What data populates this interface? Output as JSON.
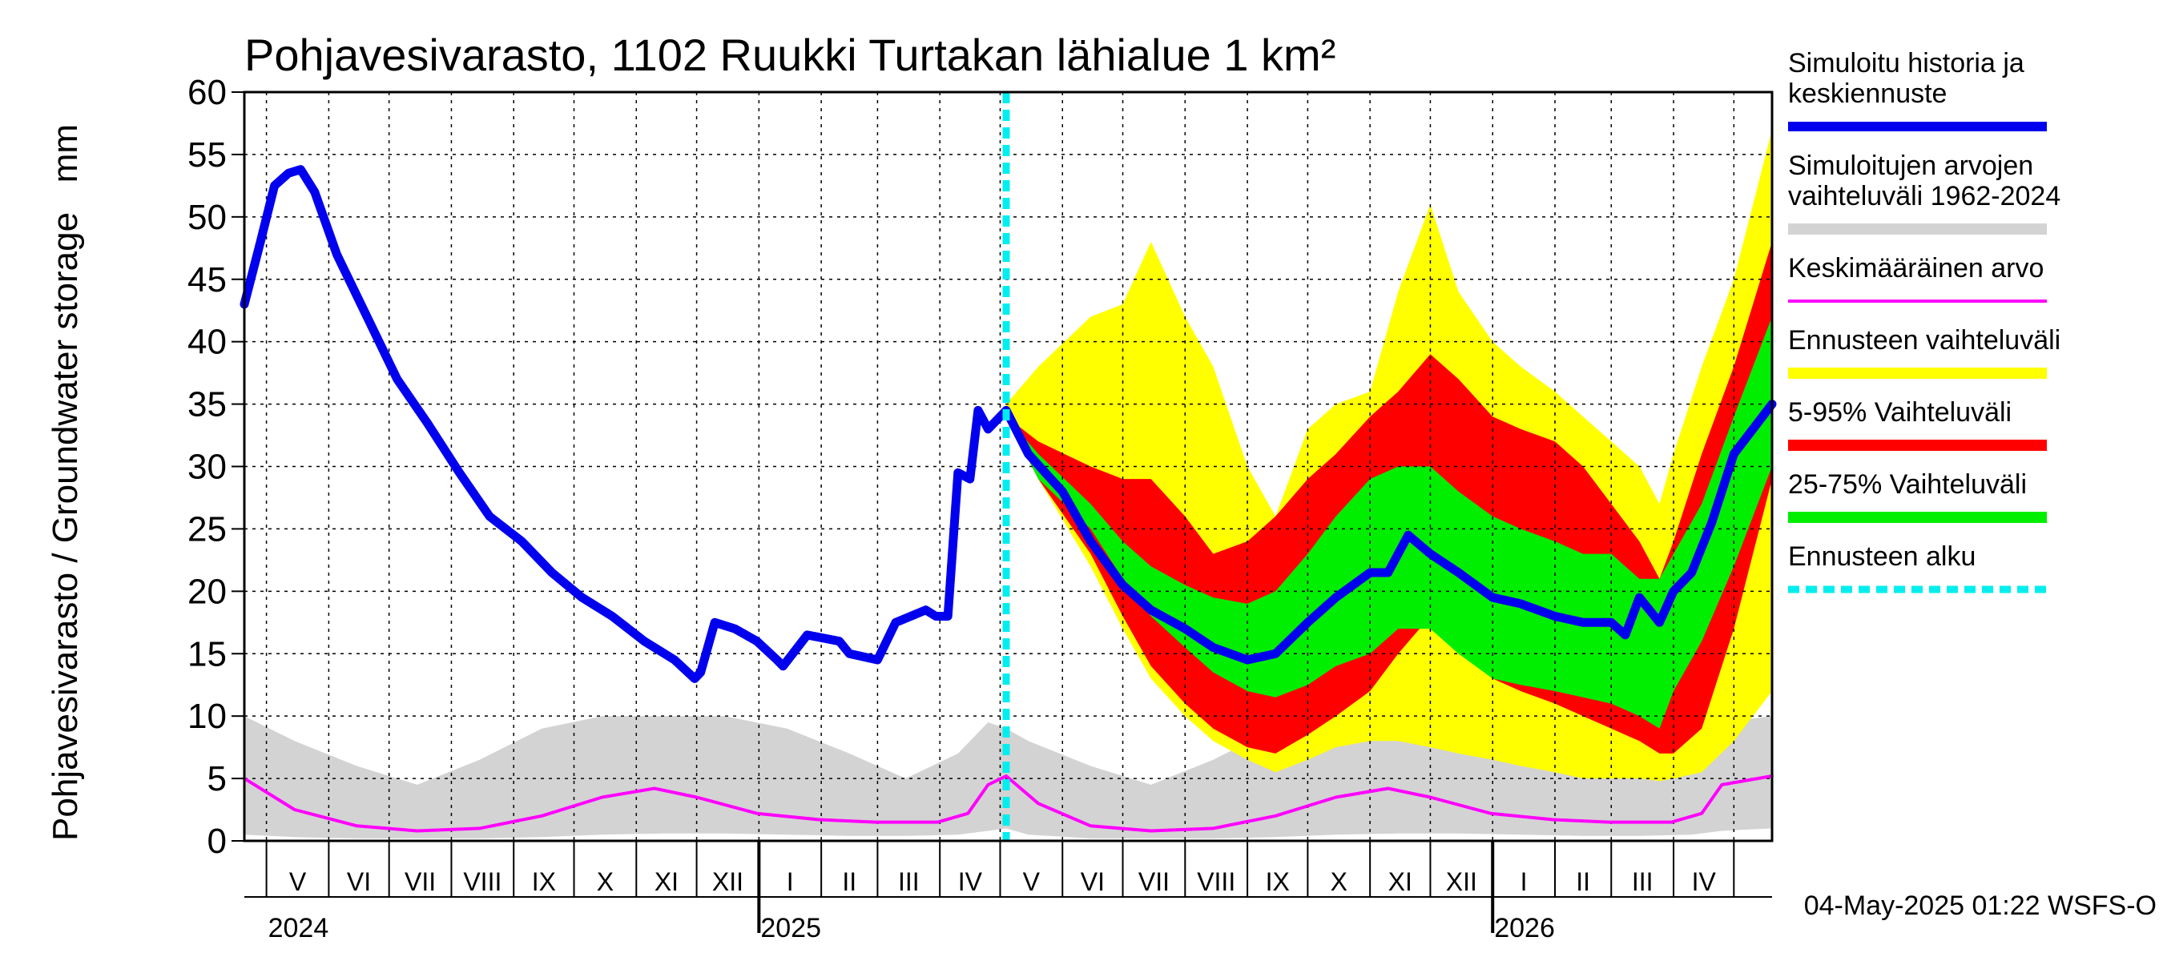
{
  "chart_data": {
    "type": "area",
    "title": "Pohjavesivarasto, 1102 Ruukki Turtakan lähialue 1 km²",
    "ylabel": "Pohjavesivarasto / Groundwater storage   mm",
    "ylim": [
      0,
      60
    ],
    "yticks": [
      "0",
      "5",
      "10",
      "15",
      "20",
      "25",
      "30",
      "35",
      "40",
      "45",
      "50",
      "55",
      "60"
    ],
    "x_range": [
      "2024-04-20",
      "2026-05-20"
    ],
    "grid": true,
    "months": [
      {
        "label": "V",
        "start": "2024-05-01"
      },
      {
        "label": "VI",
        "start": "2024-06-01"
      },
      {
        "label": "VII",
        "start": "2024-07-01"
      },
      {
        "label": "VIII",
        "start": "2024-08-01"
      },
      {
        "label": "IX",
        "start": "2024-09-01"
      },
      {
        "label": "X",
        "start": "2024-10-01"
      },
      {
        "label": "XI",
        "start": "2024-11-01"
      },
      {
        "label": "XII",
        "start": "2024-12-01"
      },
      {
        "label": "I",
        "start": "2025-01-01"
      },
      {
        "label": "II",
        "start": "2025-02-01"
      },
      {
        "label": "III",
        "start": "2025-03-01"
      },
      {
        "label": "IV",
        "start": "2025-04-01"
      },
      {
        "label": "V",
        "start": "2025-05-01"
      },
      {
        "label": "VI",
        "start": "2025-06-01"
      },
      {
        "label": "VII",
        "start": "2025-07-01"
      },
      {
        "label": "VIII",
        "start": "2025-08-01"
      },
      {
        "label": "IX",
        "start": "2025-09-01"
      },
      {
        "label": "X",
        "start": "2025-10-01"
      },
      {
        "label": "XI",
        "start": "2025-11-01"
      },
      {
        "label": "XII",
        "start": "2025-12-01"
      },
      {
        "label": "I",
        "start": "2026-01-01"
      },
      {
        "label": "II",
        "start": "2026-02-01"
      },
      {
        "label": "III",
        "start": "2026-03-01"
      },
      {
        "label": "IV",
        "start": "2026-04-01"
      },
      {
        "label": "",
        "start": "2026-05-01"
      }
    ],
    "years": [
      {
        "label": "2024",
        "date": "2024-05-01"
      },
      {
        "label": "2025",
        "date": "2025-01-01"
      },
      {
        "label": "2026",
        "date": "2026-01-01"
      }
    ],
    "forecast_start": "2025-05-04",
    "legend_placement": "right",
    "legend": [
      {
        "label": "Simuloitu historia ja keskiennuste",
        "lines": [
          "Simuloitu historia ja",
          "keskiennuste"
        ],
        "color": "#0000ee",
        "style": "line"
      },
      {
        "label": "Simuloitujen arvojen vaihteluväli 1962-2024",
        "lines": [
          "Simuloitujen arvojen",
          "vaihteluväli 1962-2024"
        ],
        "color": "#d3d3d3",
        "style": "band"
      },
      {
        "label": "Keskimääräinen arvo",
        "lines": [
          "Keskimääräinen arvo"
        ],
        "color": "#ff00ff",
        "style": "thin"
      },
      {
        "label": "Ennusteen vaihteluväli",
        "lines": [
          "Ennusteen vaihteluväli"
        ],
        "color": "#ffff00",
        "style": "band"
      },
      {
        "label": "5-95% Vaihteluväli",
        "lines": [
          "5-95% Vaihteluväli"
        ],
        "color": "#ff0000",
        "style": "band"
      },
      {
        "label": "25-75% Vaihteluväli",
        "lines": [
          "25-75% Vaihteluväli"
        ],
        "color": "#00ee00",
        "style": "band"
      },
      {
        "label": "Ennusteen alku",
        "lines": [
          "Ennusteen alku"
        ],
        "color": "#00eeee",
        "style": "dashed"
      }
    ],
    "series": [
      {
        "name": "Simuloitu historia ja keskiennuste",
        "color": "#0000ee",
        "x": [
          "2024-04-20",
          "2024-04-28",
          "2024-05-05",
          "2024-05-12",
          "2024-05-18",
          "2024-05-25",
          "2024-06-05",
          "2024-06-20",
          "2024-07-05",
          "2024-07-20",
          "2024-08-05",
          "2024-08-20",
          "2024-09-05",
          "2024-09-20",
          "2024-10-05",
          "2024-10-20",
          "2024-11-05",
          "2024-11-20",
          "2024-11-30",
          "2024-12-03",
          "2024-12-10",
          "2024-12-20",
          "2024-12-31",
          "2025-01-10",
          "2025-01-13",
          "2025-01-25",
          "2025-02-10",
          "2025-02-15",
          "2025-03-01",
          "2025-03-10",
          "2025-03-25",
          "2025-03-30",
          "2025-04-05",
          "2025-04-10",
          "2025-04-16",
          "2025-04-20",
          "2025-04-25",
          "2025-05-04",
          "2025-05-15",
          "2025-06-01",
          "2025-06-15",
          "2025-07-01",
          "2025-07-15",
          "2025-08-01",
          "2025-08-15",
          "2025-09-01",
          "2025-09-15",
          "2025-10-01",
          "2025-10-15",
          "2025-11-01",
          "2025-11-10",
          "2025-11-20",
          "2025-12-01",
          "2025-12-15",
          "2026-01-01",
          "2026-01-15",
          "2026-02-01",
          "2026-02-15",
          "2026-03-01",
          "2026-03-08",
          "2026-03-15",
          "2026-03-25",
          "2026-04-01",
          "2026-04-10",
          "2026-04-20",
          "2026-05-01",
          "2026-05-20"
        ],
        "values": [
          43,
          48,
          52.5,
          53.5,
          53.8,
          52,
          47,
          42,
          37,
          33.5,
          29.5,
          26,
          24,
          21.5,
          19.5,
          18,
          16,
          14.5,
          13,
          13.5,
          17.5,
          17,
          16,
          14.5,
          14,
          16.5,
          16,
          15,
          14.5,
          17.5,
          18.5,
          18,
          18,
          29.5,
          29,
          34.5,
          33,
          34.5,
          31,
          28,
          24,
          20.5,
          18.5,
          17,
          15.5,
          14.5,
          15,
          17.5,
          19.5,
          21.5,
          21.5,
          24.5,
          23,
          21.5,
          19.5,
          19,
          18,
          17.5,
          17.5,
          16.5,
          19.5,
          17.5,
          20,
          21.5,
          25.5,
          31,
          35
        ]
      },
      {
        "name": "Keskimääräinen arvo",
        "color": "#ff00ff",
        "x": [
          "2024-04-20",
          "2024-05-15",
          "2024-06-15",
          "2024-07-15",
          "2024-08-15",
          "2024-09-15",
          "2024-10-15",
          "2024-11-10",
          "2024-12-01",
          "2024-12-31",
          "2025-01-31",
          "2025-02-28",
          "2025-03-31",
          "2025-04-15",
          "2025-04-25",
          "2025-05-04",
          "2025-05-20",
          "2025-06-15",
          "2025-07-15",
          "2025-08-15",
          "2025-09-15",
          "2025-10-15",
          "2025-11-10",
          "2025-12-01",
          "2025-12-31",
          "2026-01-31",
          "2026-02-28",
          "2026-03-31",
          "2026-04-15",
          "2026-04-25",
          "2026-05-20"
        ],
        "values": [
          5,
          2.5,
          1.2,
          0.8,
          1,
          2,
          3.5,
          4.2,
          3.5,
          2.2,
          1.7,
          1.5,
          1.5,
          2.2,
          4.5,
          5.2,
          3,
          1.2,
          0.8,
          1,
          2,
          3.5,
          4.2,
          3.5,
          2.2,
          1.7,
          1.5,
          1.5,
          2.2,
          4.5,
          5.2
        ]
      }
    ],
    "bands": [
      {
        "name": "Simuloitujen arvojen vaihteluväli 1962-2024",
        "color": "#d3d3d3",
        "x": [
          "2024-04-20",
          "2024-05-15",
          "2024-06-15",
          "2024-07-15",
          "2024-08-15",
          "2024-09-15",
          "2024-10-15",
          "2024-11-15",
          "2024-12-15",
          "2025-01-15",
          "2025-02-15",
          "2025-03-15",
          "2025-04-10",
          "2025-04-25",
          "2025-05-04",
          "2025-05-15",
          "2025-06-15",
          "2025-07-15",
          "2025-08-15",
          "2025-09-15",
          "2025-10-15",
          "2025-11-15",
          "2025-12-15",
          "2026-01-15",
          "2026-02-15",
          "2026-03-15",
          "2026-04-10",
          "2026-04-25",
          "2026-05-20"
        ],
        "upper": [
          10,
          8,
          6,
          4.5,
          6.5,
          9,
          10,
          10,
          10,
          9,
          7,
          5,
          7,
          9.5,
          9,
          8,
          6,
          4.5,
          6.5,
          9,
          10,
          10,
          10,
          9,
          7,
          5,
          7,
          9.5,
          10
        ],
        "lower": [
          0.5,
          0.3,
          0.2,
          0.2,
          0.2,
          0.3,
          0.5,
          0.6,
          0.6,
          0.5,
          0.4,
          0.4,
          0.5,
          0.8,
          1,
          0.5,
          0.2,
          0.2,
          0.2,
          0.3,
          0.5,
          0.6,
          0.6,
          0.5,
          0.4,
          0.4,
          0.5,
          0.8,
          1
        ]
      },
      {
        "name": "Ennusteen vaihteluväli",
        "color": "#ffff00",
        "x": [
          "2025-05-04",
          "2025-05-20",
          "2025-06-15",
          "2025-07-01",
          "2025-07-15",
          "2025-08-01",
          "2025-08-15",
          "2025-09-01",
          "2025-09-15",
          "2025-10-01",
          "2025-10-15",
          "2025-11-01",
          "2025-11-15",
          "2025-12-01",
          "2025-12-15",
          "2026-01-01",
          "2026-01-15",
          "2026-02-01",
          "2026-02-15",
          "2026-03-01",
          "2026-03-15",
          "2026-03-25",
          "2026-04-01",
          "2026-04-15",
          "2026-05-01",
          "2026-05-20"
        ],
        "upper": [
          35,
          38,
          42,
          43,
          48,
          42,
          38,
          30,
          26,
          33,
          35,
          36,
          44,
          51,
          44,
          40,
          38,
          36,
          34,
          32,
          30,
          27,
          31,
          38,
          45,
          57
        ],
        "lower": [
          34,
          29,
          22,
          17,
          13,
          10,
          8,
          6.5,
          5.5,
          6.5,
          7.5,
          8,
          8,
          7.5,
          7,
          6.5,
          6,
          5.5,
          5,
          5,
          5,
          4.8,
          5,
          5.5,
          8,
          12
        ]
      },
      {
        "name": "5-95% Vaihteluväli",
        "color": "#ff0000",
        "x": [
          "2025-05-04",
          "2025-05-20",
          "2025-06-15",
          "2025-07-01",
          "2025-07-15",
          "2025-08-01",
          "2025-08-15",
          "2025-09-01",
          "2025-09-15",
          "2025-10-01",
          "2025-10-15",
          "2025-11-01",
          "2025-11-15",
          "2025-12-01",
          "2025-12-15",
          "2026-01-01",
          "2026-01-15",
          "2026-02-01",
          "2026-02-15",
          "2026-03-01",
          "2026-03-15",
          "2026-03-25",
          "2026-04-01",
          "2026-04-15",
          "2026-05-01",
          "2026-05-20"
        ],
        "upper": [
          34,
          32,
          30,
          29,
          29,
          26,
          23,
          24,
          26,
          29,
          31,
          34,
          36,
          39,
          37,
          34,
          33,
          32,
          30,
          27,
          24,
          21,
          24,
          31,
          38,
          48
        ],
        "lower": [
          34,
          29,
          23,
          18,
          14,
          11,
          9,
          7.5,
          7,
          8.5,
          10,
          12,
          15,
          18,
          16,
          13,
          12,
          11,
          10,
          9,
          8,
          7,
          7,
          9,
          17,
          29
        ]
      },
      {
        "name": "25-75% Vaihteluväli",
        "color": "#00ee00",
        "x": [
          "2025-05-04",
          "2025-05-20",
          "2025-06-15",
          "2025-07-01",
          "2025-07-15",
          "2025-08-01",
          "2025-08-15",
          "2025-09-01",
          "2025-09-15",
          "2025-10-01",
          "2025-10-15",
          "2025-11-01",
          "2025-11-15",
          "2025-12-01",
          "2025-12-15",
          "2026-01-01",
          "2026-01-15",
          "2026-02-01",
          "2026-02-15",
          "2026-03-01",
          "2026-03-15",
          "2026-03-25",
          "2026-04-01",
          "2026-04-15",
          "2026-05-01",
          "2026-05-20"
        ],
        "upper": [
          34,
          31,
          27,
          24,
          22,
          20.5,
          19.5,
          19,
          20,
          23,
          26,
          29,
          30,
          30,
          28,
          26,
          25,
          24,
          23,
          23,
          21,
          21,
          23,
          27,
          34,
          42
        ],
        "lower": [
          34,
          29,
          25,
          21,
          18,
          15.5,
          13.5,
          12,
          11.5,
          12.5,
          14,
          15,
          17,
          17,
          15,
          13,
          12.5,
          12,
          11.5,
          11,
          10,
          9,
          12,
          16,
          22,
          30
        ]
      }
    ],
    "footer": "04-May-2025 01:22 WSFS-O"
  }
}
